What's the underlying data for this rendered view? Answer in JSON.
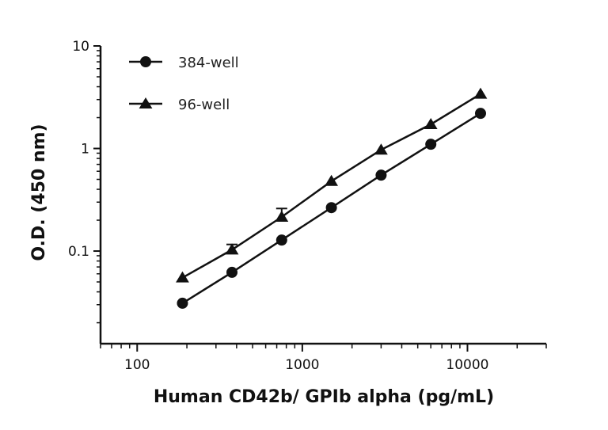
{
  "chart_data": {
    "type": "scatter",
    "title": "",
    "xlabel": "Human CD42b/ GPIb alpha (pg/mL)",
    "ylabel": "O.D. (450 nm)",
    "xscale": "log",
    "yscale": "log",
    "xlim": [
      60,
      30000
    ],
    "ylim": [
      0.0125,
      10
    ],
    "xticks": [
      100,
      1000,
      10000
    ],
    "xtick_labels": [
      "100",
      "1000",
      "10000"
    ],
    "yticks": [
      0.1,
      1,
      10
    ],
    "ytick_labels": [
      "0.1",
      "1",
      "10"
    ],
    "grid": false,
    "legend": "top-left",
    "series": [
      {
        "name": "384-well",
        "marker": "circle",
        "color": "#111111",
        "x": [
          188,
          375,
          750,
          1500,
          3000,
          6000,
          12000
        ],
        "y": [
          0.031,
          0.062,
          0.128,
          0.265,
          0.55,
          1.1,
          2.2
        ],
        "error": [
          0,
          0,
          0,
          0,
          0,
          0,
          0
        ]
      },
      {
        "name": "96-well",
        "marker": "triangle",
        "color": "#111111",
        "x": [
          188,
          375,
          750,
          1500,
          3000,
          6000,
          12000
        ],
        "y": [
          0.055,
          0.103,
          0.215,
          0.48,
          0.97,
          1.72,
          3.4
        ],
        "error": [
          0,
          0.013,
          0.045,
          0,
          0,
          0,
          0
        ]
      }
    ]
  }
}
